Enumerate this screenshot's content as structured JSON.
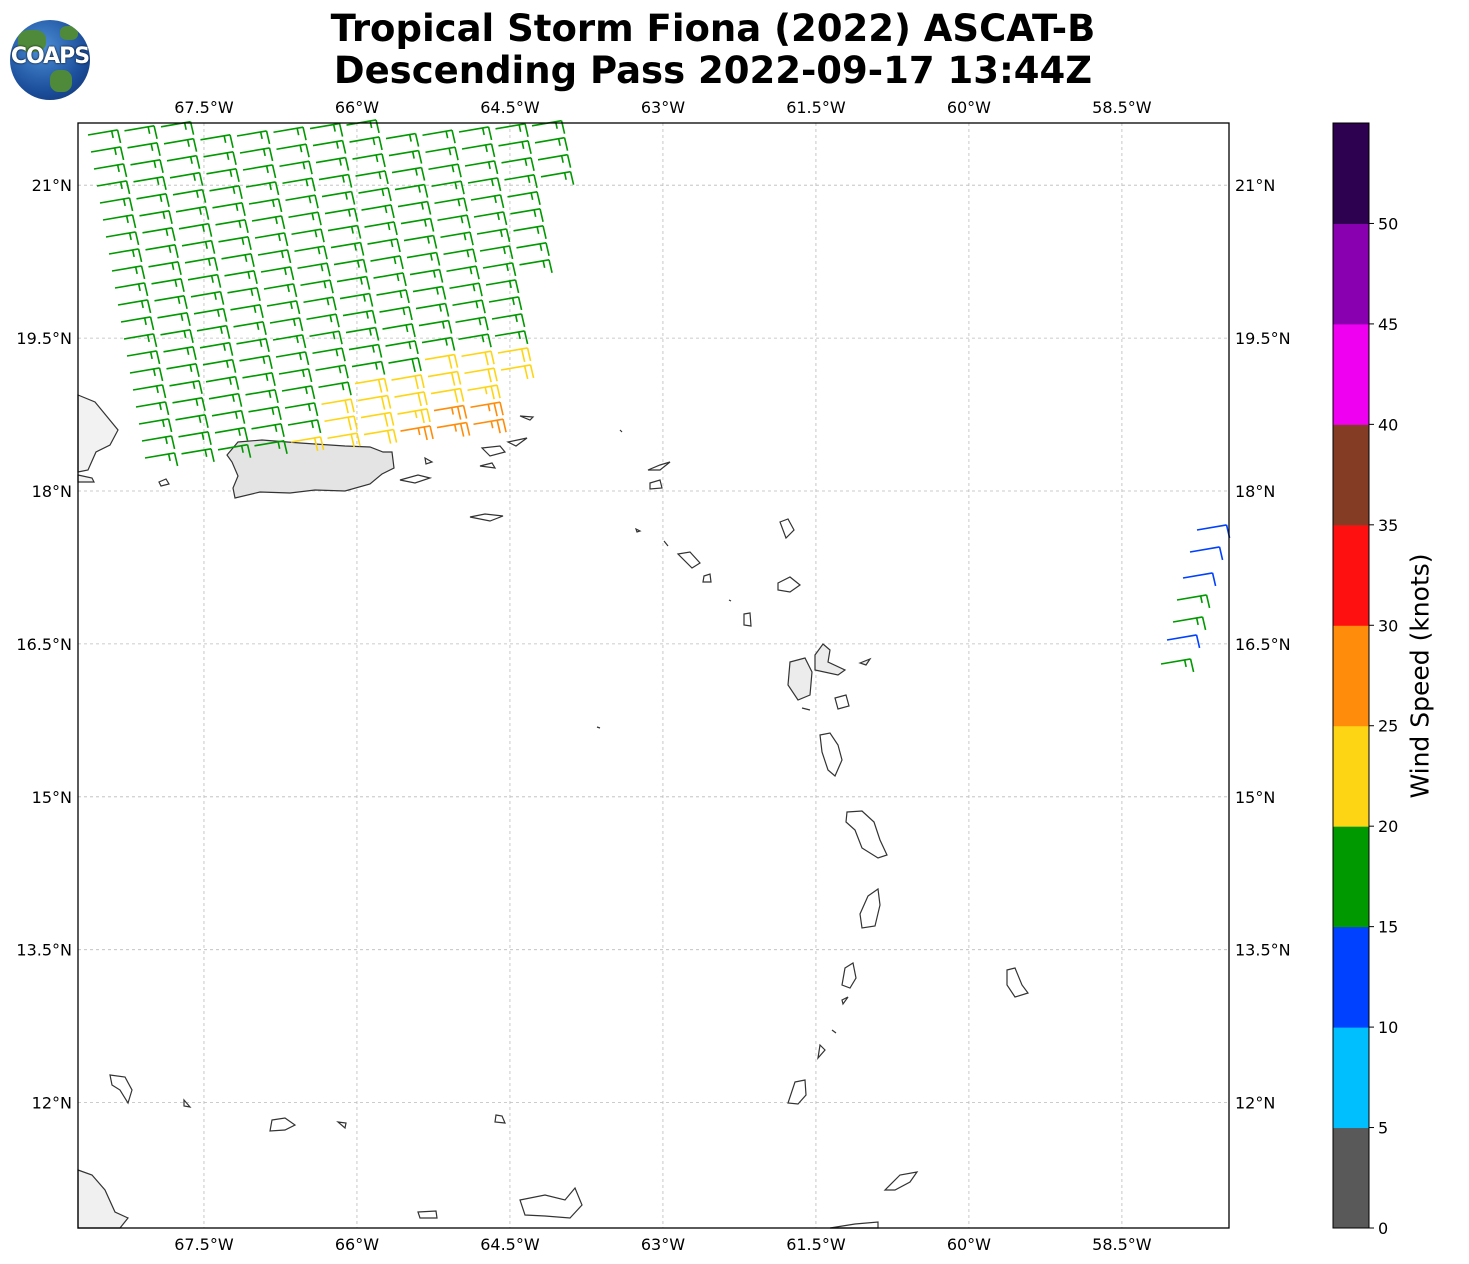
{
  "title": {
    "line1": "Tropical Storm Fiona (2022) ASCAT-B",
    "line2": "Descending Pass 2022-09-17 13:44Z"
  },
  "logo": {
    "text": "COAPS"
  },
  "map": {
    "lon_range": [
      -68.735,
      -57.45
    ],
    "lat_range": [
      10.77,
      21.61
    ],
    "lon_ticks": [
      -67.5,
      -66,
      -64.5,
      -63,
      -61.5,
      -60,
      -58.5
    ],
    "lon_tick_labels": [
      "67.5°W",
      "66°W",
      "64.5°W",
      "63°W",
      "61.5°W",
      "60°W",
      "58.5°W"
    ],
    "lat_ticks": [
      21,
      19.5,
      18,
      16.5,
      15,
      13.5,
      12
    ],
    "lat_tick_labels": [
      "21°N",
      "19.5°N",
      "18°N",
      "16.5°N",
      "15°N",
      "13.5°N",
      "12°N"
    ]
  },
  "colorbar": {
    "label": "Wind Speed (knots)",
    "bounds": [
      0,
      5,
      10,
      15,
      20,
      25,
      30,
      35,
      40,
      45,
      50,
      55
    ],
    "tick_labels": [
      "0",
      "5",
      "10",
      "15",
      "20",
      "25",
      "30",
      "35",
      "40",
      "45",
      "50"
    ],
    "colors": [
      "#595959",
      "#00bfff",
      "#0040ff",
      "#009900",
      "#fdd514",
      "#ff8c0a",
      "#ff1010",
      "#843c24",
      "#f000f0",
      "#8800b0",
      "#2d0050"
    ]
  }
}
